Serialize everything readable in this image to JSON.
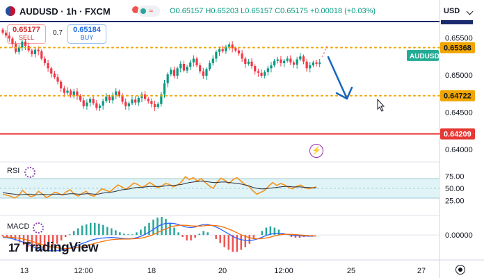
{
  "symbol": {
    "title": "AUDUSD · 1h · FXCM",
    "open_label": "O0.65157",
    "high_label": "H0.65203",
    "low_label": "L0.65157",
    "close_label": "C0.65175",
    "change_label": "+0.00018 (+0.03%)"
  },
  "toolbar": {
    "pill_icon": "≈"
  },
  "trade": {
    "sell_price": "0.65177",
    "sell_label": "SELL",
    "spread": "0.7",
    "buy_price": "0.65184",
    "buy_label": "BUY"
  },
  "currency_label": "USD",
  "colors": {
    "up": "#089981",
    "down": "#f23645",
    "dotted": "#f0a500",
    "red_line": "#e53935",
    "arrow": "#1565c0",
    "rsi": "#f7931a",
    "rsi_ma": "#2a2e39"
  },
  "chart_data": [
    {
      "type": "candlestick",
      "symbol": "AUDUSD",
      "timeframe": "1h",
      "x_ticks": [
        "13",
        "12:00",
        "18",
        "20",
        "12:00",
        "25",
        "27"
      ],
      "y_ticks": [
        "0.65500",
        "0.65000",
        "0.64500",
        "0.64000"
      ],
      "ylim": [
        0.6386,
        0.657
      ],
      "close": [
        0.6557,
        0.6553,
        0.6549,
        0.6542,
        0.6531,
        0.6537,
        0.6545,
        0.6539,
        0.6533,
        0.6528,
        0.6534,
        0.6532,
        0.6522,
        0.6516,
        0.6509,
        0.6502,
        0.6497,
        0.6491,
        0.6482,
        0.6476,
        0.6479,
        0.6473,
        0.6478,
        0.6472,
        0.6466,
        0.6458,
        0.6463,
        0.6468,
        0.6462,
        0.6456,
        0.6459,
        0.6465,
        0.6471,
        0.6466,
        0.6473,
        0.6478,
        0.6472,
        0.6464,
        0.6458,
        0.6462,
        0.6467,
        0.6463,
        0.6469,
        0.6474,
        0.6468,
        0.6465,
        0.6461,
        0.6457,
        0.6461,
        0.6474,
        0.6489,
        0.6501,
        0.6507,
        0.6499,
        0.6509,
        0.6515,
        0.6506,
        0.6511,
        0.6517,
        0.6522,
        0.6513,
        0.6505,
        0.6499,
        0.6508,
        0.6516,
        0.6522,
        0.6531,
        0.6535,
        0.6532,
        0.6538,
        0.6541,
        0.6536,
        0.6533,
        0.6529,
        0.6522,
        0.6515,
        0.6518,
        0.6512,
        0.6505,
        0.6503,
        0.6499,
        0.6504,
        0.6509,
        0.6513,
        0.6519,
        0.6521,
        0.6516,
        0.6519,
        0.6522,
        0.6517,
        0.6514,
        0.6521,
        0.6525,
        0.6518,
        0.6509,
        0.6513,
        0.6517,
        0.6515,
        0.6517
      ],
      "levels": [
        {
          "value": 0.65368,
          "label": "0.65368",
          "style": "dotted"
        },
        {
          "value": 0.64722,
          "label": "0.64722",
          "style": "dotted"
        },
        {
          "value": 0.64209,
          "label": "0.64209",
          "style": "solid"
        }
      ],
      "price_tag": {
        "label": "AUDUSD",
        "value": 0.65262
      }
    },
    {
      "type": "line",
      "name": "RSI",
      "y_ticks": [
        "75.00",
        "50.00",
        "25.00"
      ],
      "ylim": [
        0,
        100
      ],
      "band": [
        30,
        70
      ],
      "series": [
        {
          "values": [
            38,
            36,
            34,
            30,
            35,
            46,
            38,
            33,
            35,
            44,
            38,
            31,
            35,
            42,
            40,
            36,
            43,
            47,
            38,
            34,
            40,
            44,
            36,
            34,
            42,
            49,
            46,
            43,
            50,
            57,
            53,
            48,
            54,
            61,
            58,
            52,
            56,
            62,
            57,
            51,
            55,
            60,
            58,
            53,
            57,
            63,
            74,
            68,
            72,
            65,
            70,
            62,
            55,
            50,
            63,
            71,
            66,
            60,
            68,
            72,
            65,
            58,
            54,
            45,
            38,
            42,
            46,
            55,
            62,
            56,
            60,
            57,
            52,
            49,
            54,
            57,
            52,
            49,
            51,
            53
          ]
        },
        {
          "values": [
            41,
            40,
            39,
            38,
            37,
            37,
            38,
            38,
            37,
            37,
            38,
            37,
            37,
            38,
            38,
            37,
            38,
            39,
            39,
            38,
            38,
            39,
            39,
            38,
            38,
            40,
            41,
            42,
            43,
            45,
            47,
            48,
            49,
            51,
            52,
            52,
            53,
            54,
            54,
            54,
            54,
            55,
            56,
            56,
            57,
            58,
            60,
            62,
            63,
            64,
            65,
            64,
            63,
            62,
            62,
            63,
            63,
            62,
            61,
            60,
            59,
            57,
            55,
            52,
            50,
            49,
            49,
            50,
            51,
            52,
            53,
            54,
            54,
            53,
            53,
            53,
            52,
            52,
            51,
            51
          ]
        }
      ]
    },
    {
      "type": "line",
      "name": "MACD",
      "y_ticks": [
        "0.00000"
      ],
      "ylim": [
        -0.00105,
        0.00075
      ],
      "series": [
        {
          "values": [
            -0.0001,
            -0.00012,
            -0.00015,
            -0.0002,
            -0.00026,
            -0.00033,
            -0.00041,
            -0.0005,
            -0.00058,
            -0.00064,
            -0.00068,
            -0.0007,
            -0.00071,
            -0.0007,
            -0.00067,
            -0.00063,
            -0.00058,
            -0.00052,
            -0.00045,
            -0.00038,
            -0.00031,
            -0.00024,
            -0.00019,
            -0.00015,
            -0.00013,
            -0.00012,
            -0.00011,
            -0.00012,
            -0.00014,
            -0.00016,
            -0.00017,
            -0.00016,
            -0.00012,
            -6e-05,
            3e-05,
            0.00013,
            0.00025,
            0.00037,
            0.00047,
            0.00052,
            0.00053,
            0.00051,
            0.00047,
            0.00041,
            0.00035,
            0.00033,
            0.00036,
            0.00042,
            0.00047,
            0.00047,
            0.00043,
            0.00036,
            0.00027,
            0.00016,
            5e-05,
            -6e-05,
            -0.00015,
            -0.00021,
            -0.00024,
            -0.00025,
            -0.00022,
            -0.00017,
            -0.0001,
            -2e-05,
            4e-05,
            7e-05,
            8e-05,
            6e-05,
            3e-05,
            0.0,
            -2e-05,
            -4e-05,
            -4e-05,
            -5e-05,
            -5e-05,
            -4e-05
          ]
        },
        {
          "values": [
            -8e-05,
            -9e-05,
            -0.0001,
            -0.00012,
            -0.00015,
            -0.00018,
            -0.00023,
            -0.00028,
            -0.00034,
            -0.0004,
            -0.00046,
            -0.0005,
            -0.00054,
            -0.00057,
            -0.00059,
            -0.0006,
            -0.00059,
            -0.00058,
            -0.00055,
            -0.00052,
            -0.00047,
            -0.00042,
            -0.00037,
            -0.00032,
            -0.00028,
            -0.00024,
            -0.00021,
            -0.00019,
            -0.00018,
            -0.00018,
            -0.00018,
            -0.00017,
            -0.00016,
            -0.00014,
            -0.0001,
            -5e-05,
            2e-05,
            0.00011,
            0.0002,
            0.00028,
            0.00035,
            0.0004,
            0.00043,
            0.00044,
            0.00043,
            0.00041,
            0.0004,
            0.0004,
            0.00041,
            0.00043,
            0.00043,
            0.00042,
            0.00039,
            0.00034,
            0.00027,
            0.00019,
            0.0001,
            1e-05,
            -6e-05,
            -0.00012,
            -0.00016,
            -0.00017,
            -0.00016,
            -0.00013,
            -9e-05,
            -4e-05,
            0.0,
            3e-05,
            3e-05,
            3e-05,
            2e-05,
            0.0,
            -1e-05,
            -3e-05,
            -4e-05,
            -4e-05
          ]
        }
      ]
    }
  ],
  "brand": {
    "logo_text": "TradingView",
    "logo_mark": "17"
  }
}
